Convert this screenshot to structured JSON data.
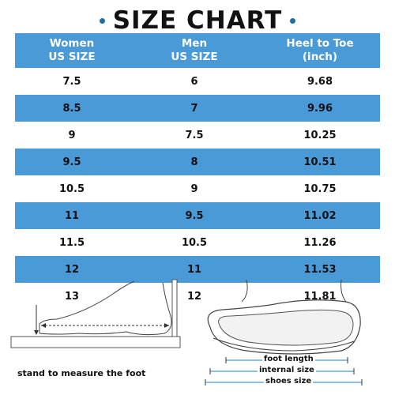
{
  "title": "SIZE CHART",
  "table": {
    "headers": [
      "Women\nUS SIZE",
      "Men\nUS SIZE",
      "Heel to Toe\n(inch)"
    ],
    "rows": [
      [
        "7.5",
        "6",
        "9.68"
      ],
      [
        "8.5",
        "7",
        "9.96"
      ],
      [
        "9",
        "7.5",
        "10.25"
      ],
      [
        "9.5",
        "8",
        "10.51"
      ],
      [
        "10.5",
        "9",
        "10.75"
      ],
      [
        "11",
        "9.5",
        "11.02"
      ],
      [
        "11.5",
        "10.5",
        "11.26"
      ],
      [
        "12",
        "11",
        "11.53"
      ],
      [
        "13",
        "12",
        "11.81"
      ]
    ]
  },
  "diagram": {
    "caption": "stand to measure the foot",
    "labels": {
      "foot_length": "foot length",
      "internal_size": "internal size",
      "shoes_size": "shoes size"
    }
  },
  "colors": {
    "accent": "#4a9ad8",
    "dot": "#1d6fa5"
  }
}
